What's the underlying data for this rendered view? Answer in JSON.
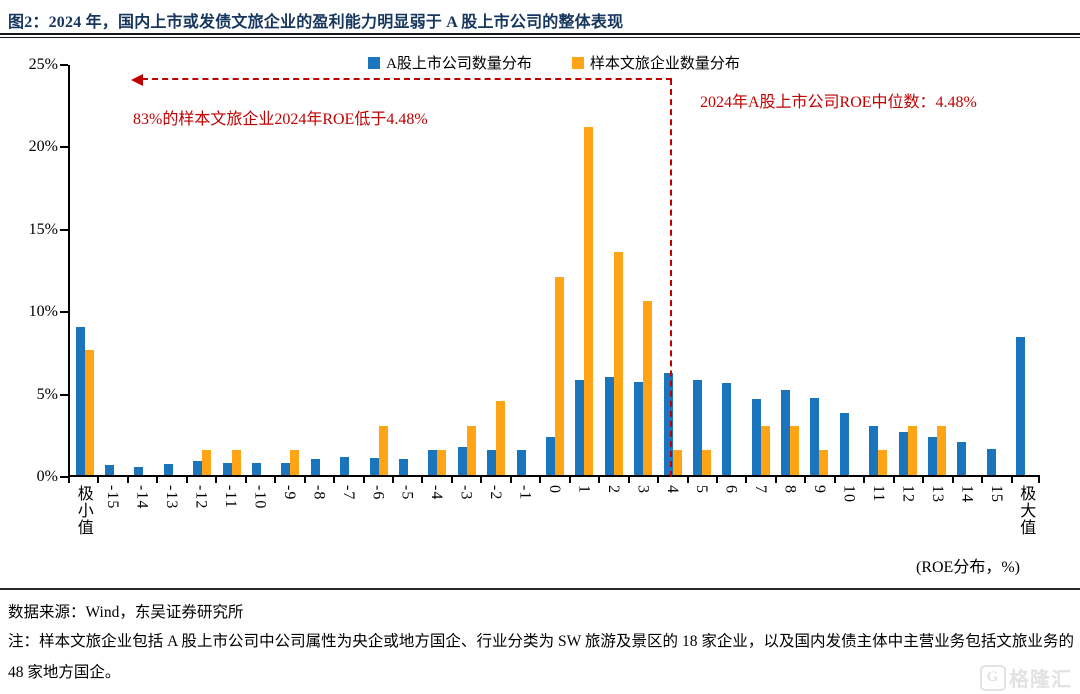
{
  "title": "图2：2024 年，国内上市或发债文旅企业的盈利能力明显弱于 A 股上市公司的整体表现",
  "legend": {
    "series1_label": "A股上市公司数量分布",
    "series2_label": "样本文旅企业数量分布"
  },
  "annotations": {
    "left_note": "83%的样本文旅企业2024年ROE低于4.48%",
    "right_note": "2024年A股上市公司ROE中位数：4.48%"
  },
  "axis": {
    "y_tick_labels": [
      "25%",
      "20%",
      "15%",
      "10%",
      "5%",
      "0%"
    ],
    "x_unit_label": "(ROE分布，%)"
  },
  "footer": {
    "source": "数据来源：Wind，东吴证券研究所",
    "note": "注：样本文旅企业包括 A 股上市公司中公司属性为央企或地方国企、行业分类为 SW 旅游及景区的 18 家企业，以及国内发债主体中主营业务包括文旅业务的 48 家地方国企。"
  },
  "watermark": {
    "badge": "G",
    "text": "格隆汇"
  },
  "colors": {
    "blue": "#1B75BC",
    "orange": "#FFA415",
    "red": "#C00000",
    "title_navy": "#17365D"
  },
  "chart_data": {
    "type": "bar",
    "title": "2024年A股上市公司与样本文旅企业ROE分布",
    "xlabel": "(ROE分布，%)",
    "ylabel": "",
    "ylim": [
      0,
      25
    ],
    "y_tick_step": 5,
    "unit": "%",
    "grid": false,
    "legend_position": "top-center",
    "categories": [
      "极小值",
      "-15",
      "-14",
      "-13",
      "-12",
      "-11",
      "-10",
      "-9",
      "-8",
      "-7",
      "-6",
      "-5",
      "-4",
      "-3",
      "-2",
      "-1",
      "0",
      "1",
      "2",
      "3",
      "4",
      "5",
      "6",
      "7",
      "8",
      "9",
      "10",
      "11",
      "12",
      "13",
      "14",
      "15",
      "极大值"
    ],
    "series": [
      {
        "name": "A股上市公司数量分布",
        "color": "#1B75BC",
        "values": [
          9.0,
          0.6,
          0.5,
          0.65,
          0.85,
          0.75,
          0.75,
          0.75,
          1.0,
          1.1,
          1.05,
          0.95,
          1.5,
          1.7,
          1.55,
          1.55,
          2.3,
          5.8,
          6.0,
          5.65,
          6.2,
          5.8,
          5.6,
          4.65,
          5.2,
          4.7,
          3.8,
          3.0,
          2.6,
          2.3,
          2.0,
          1.6,
          8.4
        ]
      },
      {
        "name": "样本文旅企业数量分布",
        "color": "#FFA415",
        "values": [
          7.6,
          0,
          0,
          0,
          1.5,
          1.5,
          0,
          1.5,
          0,
          0,
          3.0,
          0,
          1.5,
          3.0,
          4.5,
          0,
          12.1,
          21.2,
          13.6,
          10.6,
          1.5,
          1.5,
          0,
          3.0,
          3.0,
          1.5,
          0,
          1.5,
          3.0,
          3.0,
          0,
          0,
          0
        ]
      }
    ],
    "median_line_x": 4.48
  }
}
